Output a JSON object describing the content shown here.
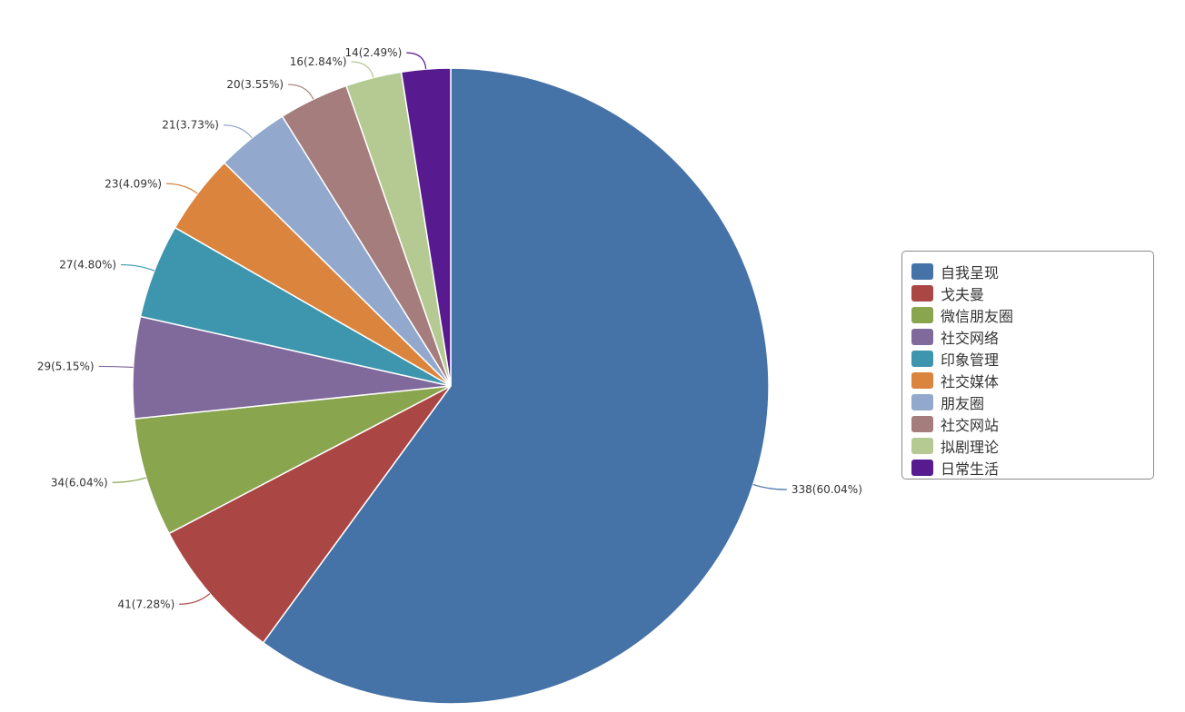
{
  "chart_data": {
    "type": "pie",
    "categories": [
      "自我呈现",
      "戈夫曼",
      "微信朋友圈",
      "社交网络",
      "印象管理",
      "社交媒体",
      "朋友圈",
      "社交网站",
      "拟剧理论",
      "日常生活"
    ],
    "values": [
      338,
      41,
      34,
      29,
      27,
      23,
      21,
      20,
      16,
      14
    ],
    "labels": [
      "338(60.04%)",
      "41(7.28%)",
      "34(6.04%)",
      "29(5.15%)",
      "27(4.80%)",
      "23(4.09%)",
      "21(3.73%)",
      "20(3.55%)",
      "16(2.84%)",
      "14(2.49%)"
    ],
    "colors": [
      "#4572a7",
      "#aa4643",
      "#89a54e",
      "#80699b",
      "#3d96ae",
      "#db843d",
      "#92a8cd",
      "#a47d7c",
      "#b5ca92",
      "#571a8f"
    ],
    "legend_position": "right"
  }
}
